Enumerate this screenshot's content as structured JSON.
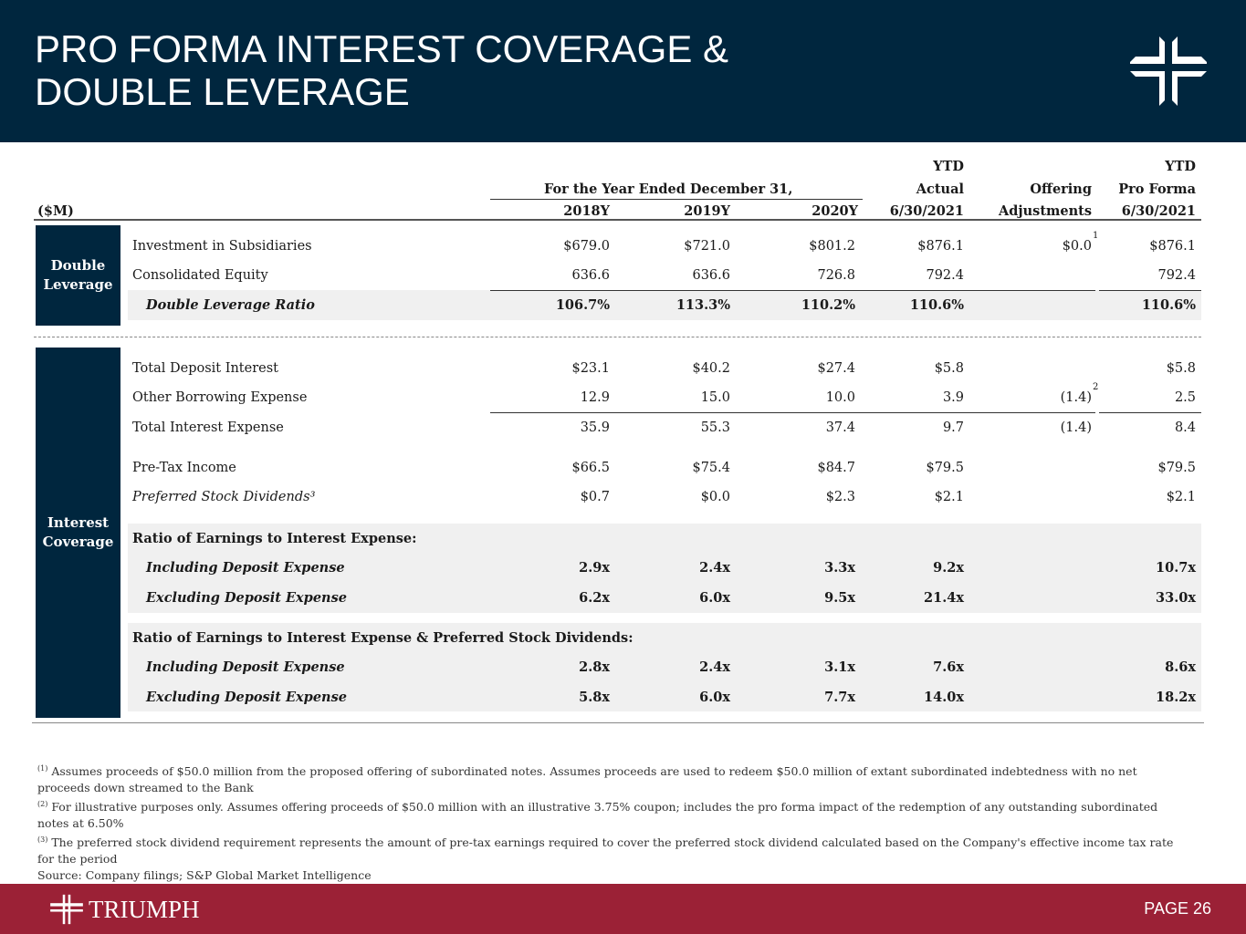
{
  "title_line1": "PRO FORMA INTEREST COVERAGE &",
  "title_line2": "DOUBLE LEVERAGE",
  "headers": {
    "units": "($M)",
    "period_group": "For the Year Ended December 31,",
    "ytd1": "YTD",
    "actual": "Actual",
    "offering": "Offering",
    "adjustments": "Adjustments",
    "ytd2": "YTD",
    "proforma": "Pro Forma",
    "cols": [
      "2018Y",
      "2019Y",
      "2020Y",
      "6/30/2021",
      "6/30/2021"
    ]
  },
  "sections": {
    "double_leverage": "Double Leverage",
    "interest_coverage": "Interest Coverage"
  },
  "rows": [
    {
      "label": "Investment in Subsidiaries",
      "v": [
        "$679.0",
        "$721.0",
        "$801.2",
        "$876.1",
        "$0.0",
        "$876.1"
      ],
      "sup": "1"
    },
    {
      "label": "Consolidated Equity",
      "v": [
        "636.6",
        "636.6",
        "726.8",
        "792.4",
        "",
        "792.4"
      ]
    },
    {
      "label": "Double Leverage Ratio",
      "v": [
        "106.7%",
        "113.3%",
        "110.2%",
        "110.6%",
        "",
        "110.6%"
      ]
    },
    {
      "label": "Total Deposit Interest",
      "v": [
        "$23.1",
        "$40.2",
        "$27.4",
        "$5.8",
        "",
        "$5.8"
      ]
    },
    {
      "label": "Other Borrowing Expense",
      "v": [
        "12.9",
        "15.0",
        "10.0",
        "3.9",
        "(1.4)",
        "2.5"
      ],
      "sup": "2"
    },
    {
      "label": "Total Interest Expense",
      "v": [
        "35.9",
        "55.3",
        "37.4",
        "9.7",
        "(1.4)",
        "8.4"
      ]
    },
    {
      "label": "Pre-Tax Income",
      "v": [
        "$66.5",
        "$75.4",
        "$84.7",
        "$79.5",
        "",
        "$79.5"
      ]
    },
    {
      "label": "Preferred Stock Dividends³",
      "v": [
        "$0.7",
        "$0.0",
        "$2.3",
        "$2.1",
        "",
        "$2.1"
      ]
    },
    {
      "label": "Ratio of Earnings to Interest Expense:",
      "v": [
        "",
        "",
        "",
        "",
        "",
        ""
      ]
    },
    {
      "label": "Including  Deposit Expense",
      "v": [
        "2.9x",
        "2.4x",
        "3.3x",
        "9.2x",
        "",
        "10.7x"
      ]
    },
    {
      "label": "Excluding Deposit Expense",
      "v": [
        "6.2x",
        "6.0x",
        "9.5x",
        "21.4x",
        "",
        "33.0x"
      ]
    },
    {
      "label": "Ratio of Earnings to Interest Expense & Preferred Stock Dividends:",
      "v": [
        "",
        "",
        "",
        "",
        "",
        ""
      ]
    },
    {
      "label": "Including  Deposit Expense",
      "v": [
        "2.8x",
        "2.4x",
        "3.1x",
        "7.6x",
        "",
        "8.6x"
      ]
    },
    {
      "label": "Excluding Deposit Expense",
      "v": [
        "5.8x",
        "6.0x",
        "7.7x",
        "14.0x",
        "",
        "18.2x"
      ]
    }
  ],
  "notes": [
    {
      "mark": "(1)",
      "text": " Assumes proceeds of $50.0 million from the proposed offering of subordinated notes. Assumes proceeds are used to redeem $50.0 million of extant subordinated indebtedness with no net proceeds down streamed to the Bank"
    },
    {
      "mark": "(2)",
      "text": " For illustrative purposes only. Assumes offering proceeds of $50.0 million with an illustrative 3.75% coupon; includes the pro forma impact of the redemption of any outstanding subordinated notes at 6.50%"
    },
    {
      "mark": "(3)",
      "text": " The preferred stock dividend requirement represents the amount of pre-tax earnings required to cover the preferred stock dividend calculated based on the Company's effective income tax rate for the period"
    }
  ],
  "source": "Source: Company filings; S&P Global Market Intelligence",
  "footer": {
    "brand": "TRIUMPH",
    "page": "PAGE 26"
  }
}
